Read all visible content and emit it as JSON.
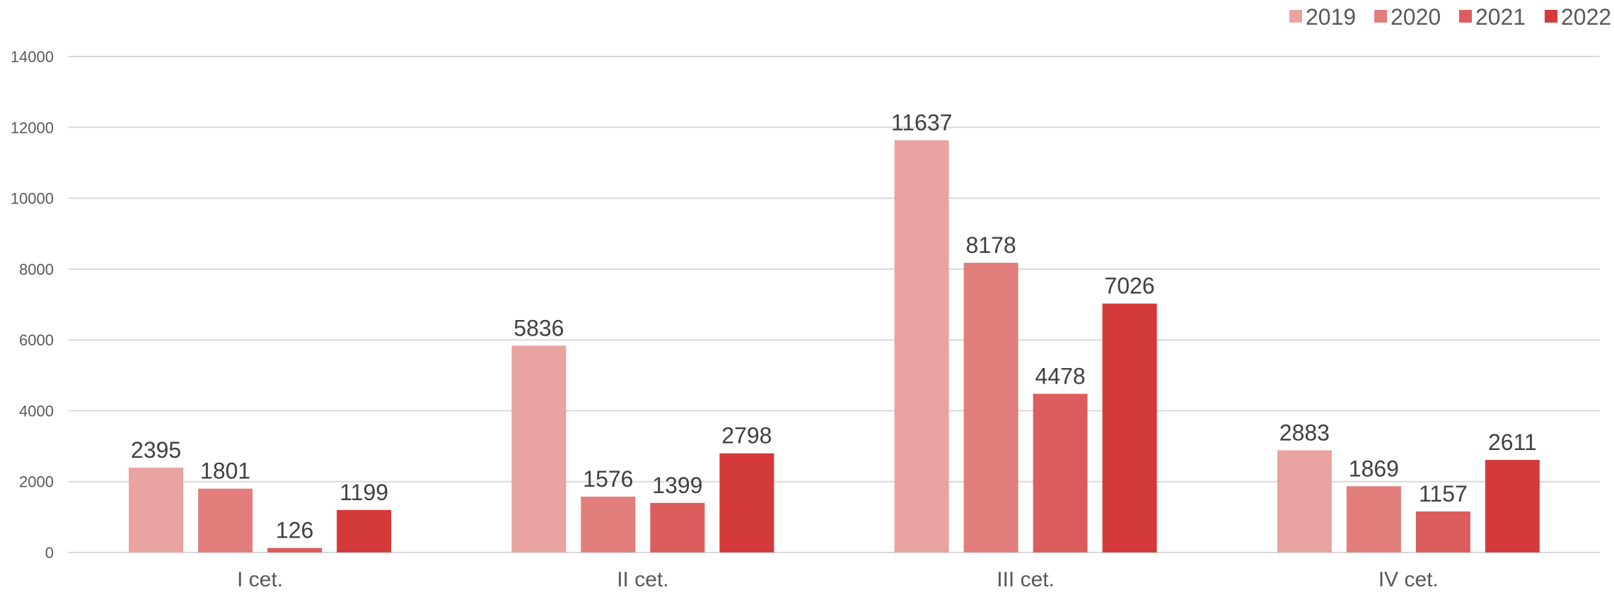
{
  "chart_data": {
    "type": "bar",
    "categories": [
      "I cet.",
      "II cet.",
      "III cet.",
      "IV cet."
    ],
    "series": [
      {
        "name": "2019",
        "values": [
          2395,
          5836,
          11637,
          2883
        ]
      },
      {
        "name": "2020",
        "values": [
          1801,
          1576,
          8178,
          1869
        ]
      },
      {
        "name": "2021",
        "values": [
          126,
          1399,
          4478,
          1157
        ]
      },
      {
        "name": "2022",
        "values": [
          1199,
          2798,
          7026,
          2611
        ]
      }
    ],
    "colors": [
      "#e9a3a1",
      "#e27e7c",
      "#dc5d5d",
      "#d53a3a"
    ],
    "ylim": [
      0,
      14000
    ],
    "yticks": [
      0,
      2000,
      4000,
      6000,
      8000,
      10000,
      12000,
      14000
    ],
    "grid": true,
    "legend": "top-right",
    "data_labels": true
  }
}
